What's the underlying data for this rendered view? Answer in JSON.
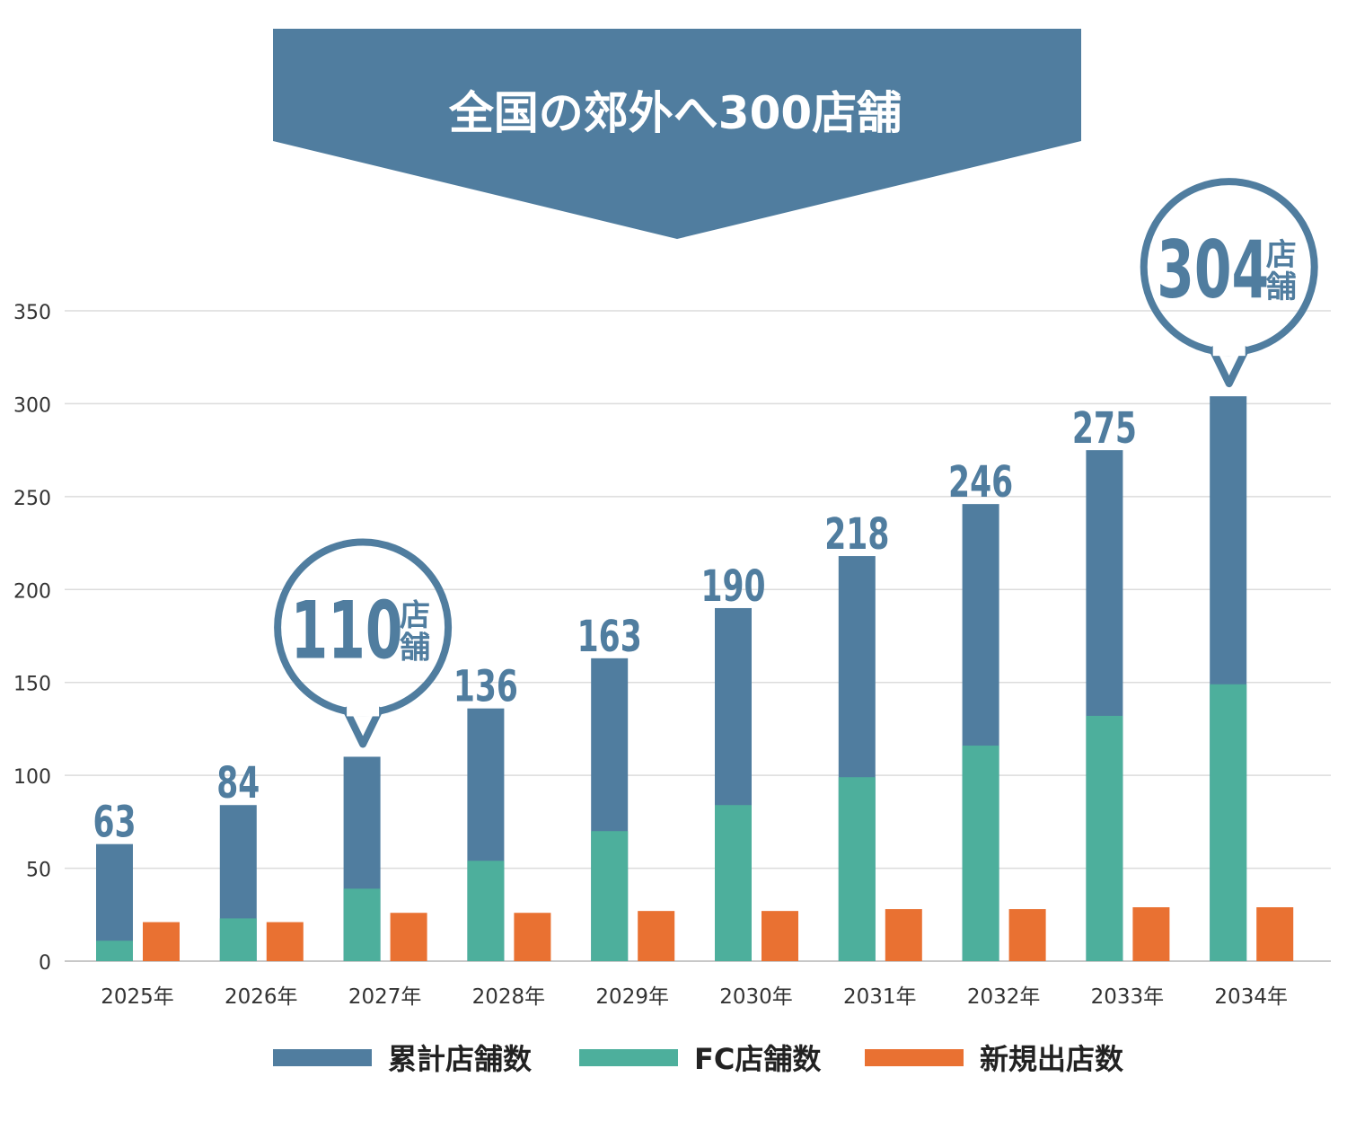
{
  "chart_data": {
    "type": "bar",
    "title": "全国の郊外へ300店舗",
    "categories": [
      "2025年",
      "2026年",
      "2027年",
      "2028年",
      "2029年",
      "2030年",
      "2031年",
      "2032年",
      "2033年",
      "2034年"
    ],
    "series": [
      {
        "name": "累計店舗数",
        "color": "#507d9f",
        "values": [
          63,
          84,
          110,
          136,
          163,
          190,
          218,
          246,
          275,
          304
        ]
      },
      {
        "name": "FC店舗数",
        "color": "#4daf9c",
        "values": [
          11,
          23,
          39,
          54,
          70,
          84,
          99,
          116,
          132,
          149
        ]
      },
      {
        "name": "新規出店数",
        "color": "#e97132",
        "values": [
          21,
          21,
          26,
          26,
          27,
          27,
          28,
          28,
          29,
          29
        ]
      }
    ],
    "data_labels": [
      "63",
      "84",
      "110",
      "136",
      "163",
      "190",
      "218",
      "246",
      "275",
      "304"
    ],
    "callouts": [
      {
        "category": "2027年",
        "value": "110",
        "unit": "店舗"
      },
      {
        "category": "2034年",
        "value": "304",
        "unit": "店舗"
      }
    ],
    "y_ticks": [
      "0",
      "50",
      "100",
      "150",
      "200",
      "250",
      "300",
      "350"
    ],
    "ylim": [
      0,
      350
    ],
    "grid": true,
    "legend_position": "bottom",
    "xlabel": "",
    "ylabel": ""
  }
}
